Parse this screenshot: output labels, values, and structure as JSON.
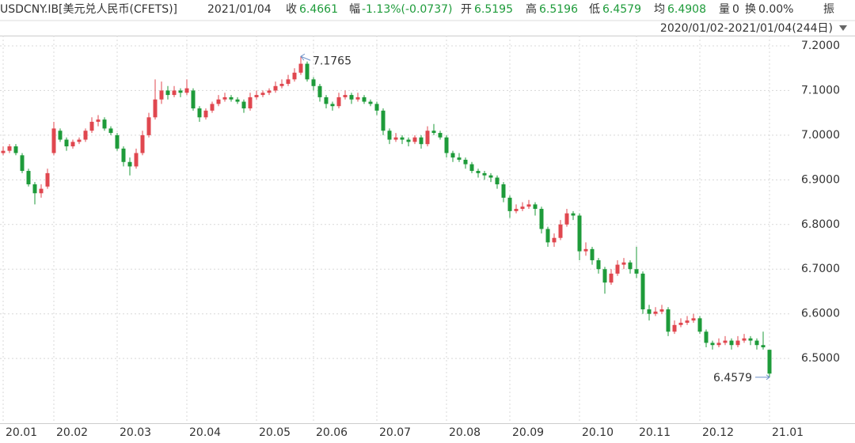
{
  "chart_data": {
    "type": "candlestick",
    "header": {
      "symbol": "USDCNY.IB[美元兑人民币(CFETS)]",
      "date": "2021/01/04",
      "close_label": "收",
      "change_label": "幅",
      "change": "-1.13%(-0.0737)",
      "open_label": "开",
      "high_label": "高",
      "low_label": "低",
      "avg_label": "均",
      "avg": 6.4908,
      "volume_label": "量",
      "volume": 0,
      "turnover_label": "换",
      "turnover": "0.00%",
      "amplitude_label": "振",
      "period": "2020/01/02-2021/01/04(244日)"
    },
    "up_color": "#e0474f",
    "down_color": "#1e9b3a",
    "ylim": [
      6.355,
      7.223
    ],
    "yticks": [
      {
        "value": 6.5,
        "label": "6.5000"
      },
      {
        "value": 6.6,
        "label": "6.6000"
      },
      {
        "value": 6.7,
        "label": "6.7000"
      },
      {
        "value": 6.8,
        "label": "6.8000"
      },
      {
        "value": 6.9,
        "label": "6.9000"
      },
      {
        "value": 7.0,
        "label": "7.0000"
      },
      {
        "value": 7.1,
        "label": "7.1000"
      },
      {
        "value": 7.2,
        "label": "7.2000"
      }
    ],
    "xticks": [
      {
        "value": 0,
        "label": "20.01"
      },
      {
        "value": 8,
        "label": "20.02"
      },
      {
        "value": 18,
        "label": "20.03"
      },
      {
        "value": 29,
        "label": "20.04"
      },
      {
        "value": 40,
        "label": "20.05"
      },
      {
        "value": 49,
        "label": "20.06"
      },
      {
        "value": 59,
        "label": "20.07"
      },
      {
        "value": 70,
        "label": "20.08"
      },
      {
        "value": 80,
        "label": "20.09"
      },
      {
        "value": 91,
        "label": "20.10"
      },
      {
        "value": 100,
        "label": "20.11"
      },
      {
        "value": 110,
        "label": "20.12"
      },
      {
        "value": 121,
        "label": "21.01"
      }
    ],
    "grid": true,
    "high_index": 47,
    "low_index": 121,
    "ohlc": [
      [
        6.96,
        6.975,
        6.955,
        6.965
      ],
      [
        6.965,
        6.98,
        6.96,
        6.975
      ],
      [
        6.975,
        6.98,
        6.955,
        6.96
      ],
      [
        6.955,
        6.96,
        6.915,
        6.92
      ],
      [
        6.92,
        6.925,
        6.885,
        6.89
      ],
      [
        6.89,
        6.895,
        6.845,
        6.87
      ],
      [
        6.87,
        6.89,
        6.86,
        6.88
      ],
      [
        6.885,
        6.925,
        6.88,
        6.915
      ],
      [
        6.96,
        7.03,
        6.955,
        7.015
      ],
      [
        7.01,
        7.015,
        6.985,
        6.99
      ],
      [
        6.99,
        6.995,
        6.965,
        6.975
      ],
      [
        6.975,
        6.99,
        6.97,
        6.985
      ],
      [
        6.985,
        6.995,
        6.98,
        6.99
      ],
      [
        6.99,
        7.015,
        6.985,
        7.01
      ],
      [
        7.01,
        7.04,
        7.005,
        7.03
      ],
      [
        7.03,
        7.045,
        7.02,
        7.035
      ],
      [
        7.035,
        7.04,
        7.01,
        7.015
      ],
      [
        7.015,
        7.02,
        7.0,
        7.005
      ],
      [
        7.0,
        7.005,
        6.965,
        6.97
      ],
      [
        6.97,
        6.975,
        6.93,
        6.94
      ],
      [
        6.94,
        6.95,
        6.91,
        6.93
      ],
      [
        6.93,
        6.97,
        6.925,
        6.96
      ],
      [
        6.96,
        7.01,
        6.955,
        7.0
      ],
      [
        7.0,
        7.05,
        6.995,
        7.04
      ],
      [
        7.04,
        7.125,
        7.035,
        7.08
      ],
      [
        7.08,
        7.12,
        7.07,
        7.1
      ],
      [
        7.1,
        7.11,
        7.08,
        7.09
      ],
      [
        7.09,
        7.11,
        7.085,
        7.1
      ],
      [
        7.1,
        7.105,
        7.085,
        7.095
      ],
      [
        7.095,
        7.125,
        7.09,
        7.105
      ],
      [
        7.1,
        7.105,
        7.055,
        7.06
      ],
      [
        7.06,
        7.065,
        7.03,
        7.04
      ],
      [
        7.04,
        7.06,
        7.035,
        7.055
      ],
      [
        7.055,
        7.075,
        7.05,
        7.07
      ],
      [
        7.07,
        7.09,
        7.065,
        7.08
      ],
      [
        7.08,
        7.095,
        7.075,
        7.085
      ],
      [
        7.085,
        7.09,
        7.075,
        7.08
      ],
      [
        7.08,
        7.085,
        7.07,
        7.075
      ],
      [
        7.075,
        7.08,
        7.05,
        7.06
      ],
      [
        7.06,
        7.095,
        7.055,
        7.085
      ],
      [
        7.085,
        7.1,
        7.08,
        7.09
      ],
      [
        7.09,
        7.1,
        7.085,
        7.095
      ],
      [
        7.095,
        7.105,
        7.09,
        7.1
      ],
      [
        7.1,
        7.12,
        7.095,
        7.11
      ],
      [
        7.11,
        7.125,
        7.105,
        7.115
      ],
      [
        7.115,
        7.135,
        7.11,
        7.125
      ],
      [
        7.125,
        7.15,
        7.12,
        7.14
      ],
      [
        7.14,
        7.1765,
        7.135,
        7.16
      ],
      [
        7.16,
        7.165,
        7.12,
        7.125
      ],
      [
        7.125,
        7.13,
        7.1,
        7.11
      ],
      [
        7.11,
        7.115,
        7.075,
        7.085
      ],
      [
        7.085,
        7.09,
        7.06,
        7.07
      ],
      [
        7.07,
        7.075,
        7.055,
        7.065
      ],
      [
        7.065,
        7.095,
        7.06,
        7.085
      ],
      [
        7.085,
        7.1,
        7.08,
        7.09
      ],
      [
        7.09,
        7.095,
        7.07,
        7.08
      ],
      [
        7.08,
        7.095,
        7.075,
        7.085
      ],
      [
        7.085,
        7.09,
        7.07,
        7.075
      ],
      [
        7.075,
        7.08,
        7.065,
        7.07
      ],
      [
        7.07,
        7.075,
        7.045,
        7.055
      ],
      [
        7.055,
        7.06,
        7.0,
        7.01
      ],
      [
        7.01,
        7.015,
        6.98,
        6.99
      ],
      [
        6.99,
        7.005,
        6.985,
        6.995
      ],
      [
        6.995,
        7.0,
        6.98,
        6.99
      ],
      [
        6.99,
        6.995,
        6.975,
        6.985
      ],
      [
        6.985,
        7.0,
        6.98,
        6.995
      ],
      [
        6.995,
        7.0,
        6.97,
        6.98
      ],
      [
        6.98,
        7.02,
        6.975,
        7.01
      ],
      [
        7.01,
        7.025,
        7.0,
        7.005
      ],
      [
        7.005,
        7.01,
        6.99,
        6.995
      ],
      [
        6.995,
        7.0,
        6.95,
        6.96
      ],
      [
        6.96,
        6.965,
        6.94,
        6.95
      ],
      [
        6.95,
        6.96,
        6.94,
        6.945
      ],
      [
        6.945,
        6.95,
        6.925,
        6.935
      ],
      [
        6.935,
        6.94,
        6.915,
        6.92
      ],
      [
        6.92,
        6.925,
        6.905,
        6.915
      ],
      [
        6.915,
        6.92,
        6.9,
        6.91
      ],
      [
        6.91,
        6.915,
        6.895,
        6.905
      ],
      [
        6.905,
        6.91,
        6.88,
        6.89
      ],
      [
        6.89,
        6.895,
        6.85,
        6.86
      ],
      [
        6.86,
        6.865,
        6.815,
        6.83
      ],
      [
        6.83,
        6.845,
        6.825,
        6.835
      ],
      [
        6.835,
        6.85,
        6.83,
        6.84
      ],
      [
        6.84,
        6.855,
        6.835,
        6.845
      ],
      [
        6.845,
        6.85,
        6.82,
        6.835
      ],
      [
        6.835,
        6.84,
        6.78,
        6.79
      ],
      [
        6.79,
        6.795,
        6.75,
        6.76
      ],
      [
        6.76,
        6.78,
        6.75,
        6.77
      ],
      [
        6.77,
        6.81,
        6.765,
        6.8
      ],
      [
        6.8,
        6.835,
        6.795,
        6.825
      ],
      [
        6.825,
        6.83,
        6.81,
        6.82
      ],
      [
        6.82,
        6.825,
        6.72,
        6.74
      ],
      [
        6.74,
        6.76,
        6.73,
        6.745
      ],
      [
        6.745,
        6.75,
        6.71,
        6.72
      ],
      [
        6.72,
        6.725,
        6.69,
        6.7
      ],
      [
        6.7,
        6.705,
        6.645,
        6.67
      ],
      [
        6.67,
        6.7,
        6.665,
        6.69
      ],
      [
        6.69,
        6.72,
        6.685,
        6.71
      ],
      [
        6.71,
        6.725,
        6.7,
        6.715
      ],
      [
        6.715,
        6.72,
        6.69,
        6.7
      ],
      [
        6.7,
        6.75,
        6.68,
        6.69
      ],
      [
        6.69,
        6.695,
        6.6,
        6.61
      ],
      [
        6.61,
        6.62,
        6.585,
        6.6
      ],
      [
        6.6,
        6.615,
        6.595,
        6.605
      ],
      [
        6.605,
        6.62,
        6.6,
        6.61
      ],
      [
        6.61,
        6.615,
        6.55,
        6.56
      ],
      [
        6.56,
        6.585,
        6.555,
        6.575
      ],
      [
        6.575,
        6.59,
        6.57,
        6.58
      ],
      [
        6.58,
        6.595,
        6.575,
        6.585
      ],
      [
        6.585,
        6.6,
        6.58,
        6.59
      ],
      [
        6.59,
        6.595,
        6.555,
        6.56
      ],
      [
        6.56,
        6.565,
        6.525,
        6.535
      ],
      [
        6.535,
        6.54,
        6.52,
        6.53
      ],
      [
        6.53,
        6.545,
        6.525,
        6.535
      ],
      [
        6.535,
        6.55,
        6.53,
        6.54
      ],
      [
        6.54,
        6.545,
        6.52,
        6.53
      ],
      [
        6.53,
        6.55,
        6.525,
        6.54
      ],
      [
        6.54,
        6.555,
        6.535,
        6.545
      ],
      [
        6.545,
        6.55,
        6.53,
        6.54
      ],
      [
        6.54,
        6.545,
        6.52,
        6.53
      ],
      [
        6.53,
        6.56,
        6.52,
        6.525
      ],
      [
        6.5195,
        6.5196,
        6.4579,
        6.4661
      ]
    ]
  }
}
